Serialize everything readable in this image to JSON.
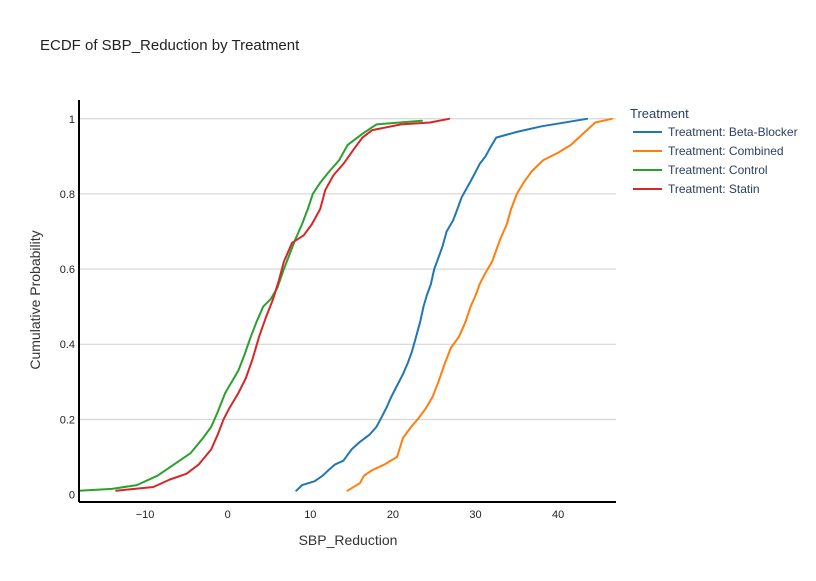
{
  "chart_data": {
    "type": "line",
    "title": "ECDF of SBP_Reduction by Treatment",
    "xlabel": "SBP_Reduction",
    "ylabel": "Cumulative Probability",
    "xlim": [
      -18,
      47
    ],
    "ylim": [
      -0.02,
      1.05
    ],
    "x_ticks": [
      -10,
      0,
      10,
      20,
      30,
      40
    ],
    "x_tick_labels": [
      "−10",
      "0",
      "10",
      "20",
      "30",
      "40"
    ],
    "y_ticks": [
      0,
      0.2,
      0.4,
      0.6,
      0.8,
      1
    ],
    "y_tick_labels": [
      "0",
      "0.2",
      "0.4",
      "0.6",
      "0.8",
      "1"
    ],
    "grid": "horizontal",
    "legend": {
      "title": "Treatment",
      "placement": "right",
      "entries": [
        "Treatment: Beta-Blocker",
        "Treatment: Combined",
        "Treatment: Control",
        "Treatment: Statin"
      ]
    },
    "series": [
      {
        "name": "Treatment: Beta-Blocker",
        "color": "#1f77b4",
        "points": [
          [
            8.3,
            0.01
          ],
          [
            9,
            0.025
          ],
          [
            10.5,
            0.035
          ],
          [
            11.5,
            0.05
          ],
          [
            12.2,
            0.065
          ],
          [
            13,
            0.08
          ],
          [
            14,
            0.09
          ],
          [
            15,
            0.12
          ],
          [
            16,
            0.14
          ],
          [
            17.2,
            0.16
          ],
          [
            18,
            0.18
          ],
          [
            18.5,
            0.2
          ],
          [
            19.2,
            0.23
          ],
          [
            19.8,
            0.26
          ],
          [
            20.5,
            0.29
          ],
          [
            21.2,
            0.32
          ],
          [
            21.8,
            0.35
          ],
          [
            22.3,
            0.38
          ],
          [
            22.8,
            0.42
          ],
          [
            23.3,
            0.46
          ],
          [
            23.7,
            0.5
          ],
          [
            24.1,
            0.53
          ],
          [
            24.6,
            0.56
          ],
          [
            25,
            0.6
          ],
          [
            25.5,
            0.63
          ],
          [
            26,
            0.66
          ],
          [
            26.5,
            0.7
          ],
          [
            27.3,
            0.73
          ],
          [
            27.8,
            0.76
          ],
          [
            28.3,
            0.79
          ],
          [
            28.8,
            0.81
          ],
          [
            29.3,
            0.83
          ],
          [
            29.8,
            0.85
          ],
          [
            30.5,
            0.88
          ],
          [
            31.2,
            0.9
          ],
          [
            31.7,
            0.92
          ],
          [
            32.5,
            0.95
          ],
          [
            35,
            0.965
          ],
          [
            38,
            0.98
          ],
          [
            43.5,
            1.0
          ]
        ]
      },
      {
        "name": "Treatment: Combined",
        "color": "#ff7f0e",
        "points": [
          [
            14.5,
            0.01
          ],
          [
            16,
            0.03
          ],
          [
            16.5,
            0.05
          ],
          [
            17.5,
            0.065
          ],
          [
            19,
            0.08
          ],
          [
            20.5,
            0.1
          ],
          [
            21.2,
            0.15
          ],
          [
            22.2,
            0.18
          ],
          [
            23,
            0.2
          ],
          [
            24,
            0.23
          ],
          [
            24.8,
            0.26
          ],
          [
            25.5,
            0.3
          ],
          [
            26.3,
            0.35
          ],
          [
            27,
            0.39
          ],
          [
            28,
            0.42
          ],
          [
            28.8,
            0.46
          ],
          [
            29.4,
            0.5
          ],
          [
            30,
            0.53
          ],
          [
            30.5,
            0.56
          ],
          [
            31.2,
            0.59
          ],
          [
            32,
            0.62
          ],
          [
            32.5,
            0.65
          ],
          [
            33,
            0.68
          ],
          [
            33.8,
            0.72
          ],
          [
            34.3,
            0.76
          ],
          [
            35,
            0.8
          ],
          [
            35.8,
            0.83
          ],
          [
            36.8,
            0.86
          ],
          [
            38.2,
            0.89
          ],
          [
            40,
            0.91
          ],
          [
            41.5,
            0.93
          ],
          [
            43,
            0.96
          ],
          [
            44.5,
            0.99
          ],
          [
            46.5,
            1.0
          ]
        ]
      },
      {
        "name": "Treatment: Control",
        "color": "#2ca02c",
        "points": [
          [
            -18,
            0.01
          ],
          [
            -14,
            0.015
          ],
          [
            -11,
            0.025
          ],
          [
            -8.5,
            0.05
          ],
          [
            -6.5,
            0.08
          ],
          [
            -4.5,
            0.11
          ],
          [
            -3,
            0.15
          ],
          [
            -2,
            0.18
          ],
          [
            -1.2,
            0.22
          ],
          [
            -0.3,
            0.27
          ],
          [
            0.5,
            0.3
          ],
          [
            1.3,
            0.33
          ],
          [
            2,
            0.37
          ],
          [
            2.8,
            0.42
          ],
          [
            3.5,
            0.46
          ],
          [
            4.3,
            0.5
          ],
          [
            5.2,
            0.52
          ],
          [
            6,
            0.55
          ],
          [
            6.8,
            0.6
          ],
          [
            7.5,
            0.64
          ],
          [
            8.2,
            0.68
          ],
          [
            9,
            0.72
          ],
          [
            9.7,
            0.76
          ],
          [
            10.3,
            0.8
          ],
          [
            11.2,
            0.83
          ],
          [
            12.3,
            0.86
          ],
          [
            13.5,
            0.89
          ],
          [
            14.5,
            0.93
          ],
          [
            16.3,
            0.96
          ],
          [
            18,
            0.985
          ],
          [
            23.5,
            0.995
          ]
        ]
      },
      {
        "name": "Treatment: Statin",
        "color": "#d62728",
        "points": [
          [
            -13.5,
            0.01
          ],
          [
            -9,
            0.02
          ],
          [
            -7,
            0.04
          ],
          [
            -5,
            0.055
          ],
          [
            -3.5,
            0.08
          ],
          [
            -2,
            0.12
          ],
          [
            -1.2,
            0.16
          ],
          [
            -0.5,
            0.2
          ],
          [
            0.2,
            0.23
          ],
          [
            1.3,
            0.27
          ],
          [
            2.2,
            0.31
          ],
          [
            3,
            0.36
          ],
          [
            3.8,
            0.42
          ],
          [
            4.6,
            0.47
          ],
          [
            5.5,
            0.52
          ],
          [
            6.2,
            0.57
          ],
          [
            6.8,
            0.62
          ],
          [
            7.8,
            0.67
          ],
          [
            9.2,
            0.69
          ],
          [
            10.2,
            0.72
          ],
          [
            11.2,
            0.76
          ],
          [
            11.8,
            0.81
          ],
          [
            12.8,
            0.85
          ],
          [
            14,
            0.88
          ],
          [
            15.3,
            0.92
          ],
          [
            16.3,
            0.95
          ],
          [
            17.5,
            0.97
          ],
          [
            21,
            0.985
          ],
          [
            24.5,
            0.99
          ],
          [
            26.8,
            1.0
          ]
        ]
      }
    ]
  }
}
